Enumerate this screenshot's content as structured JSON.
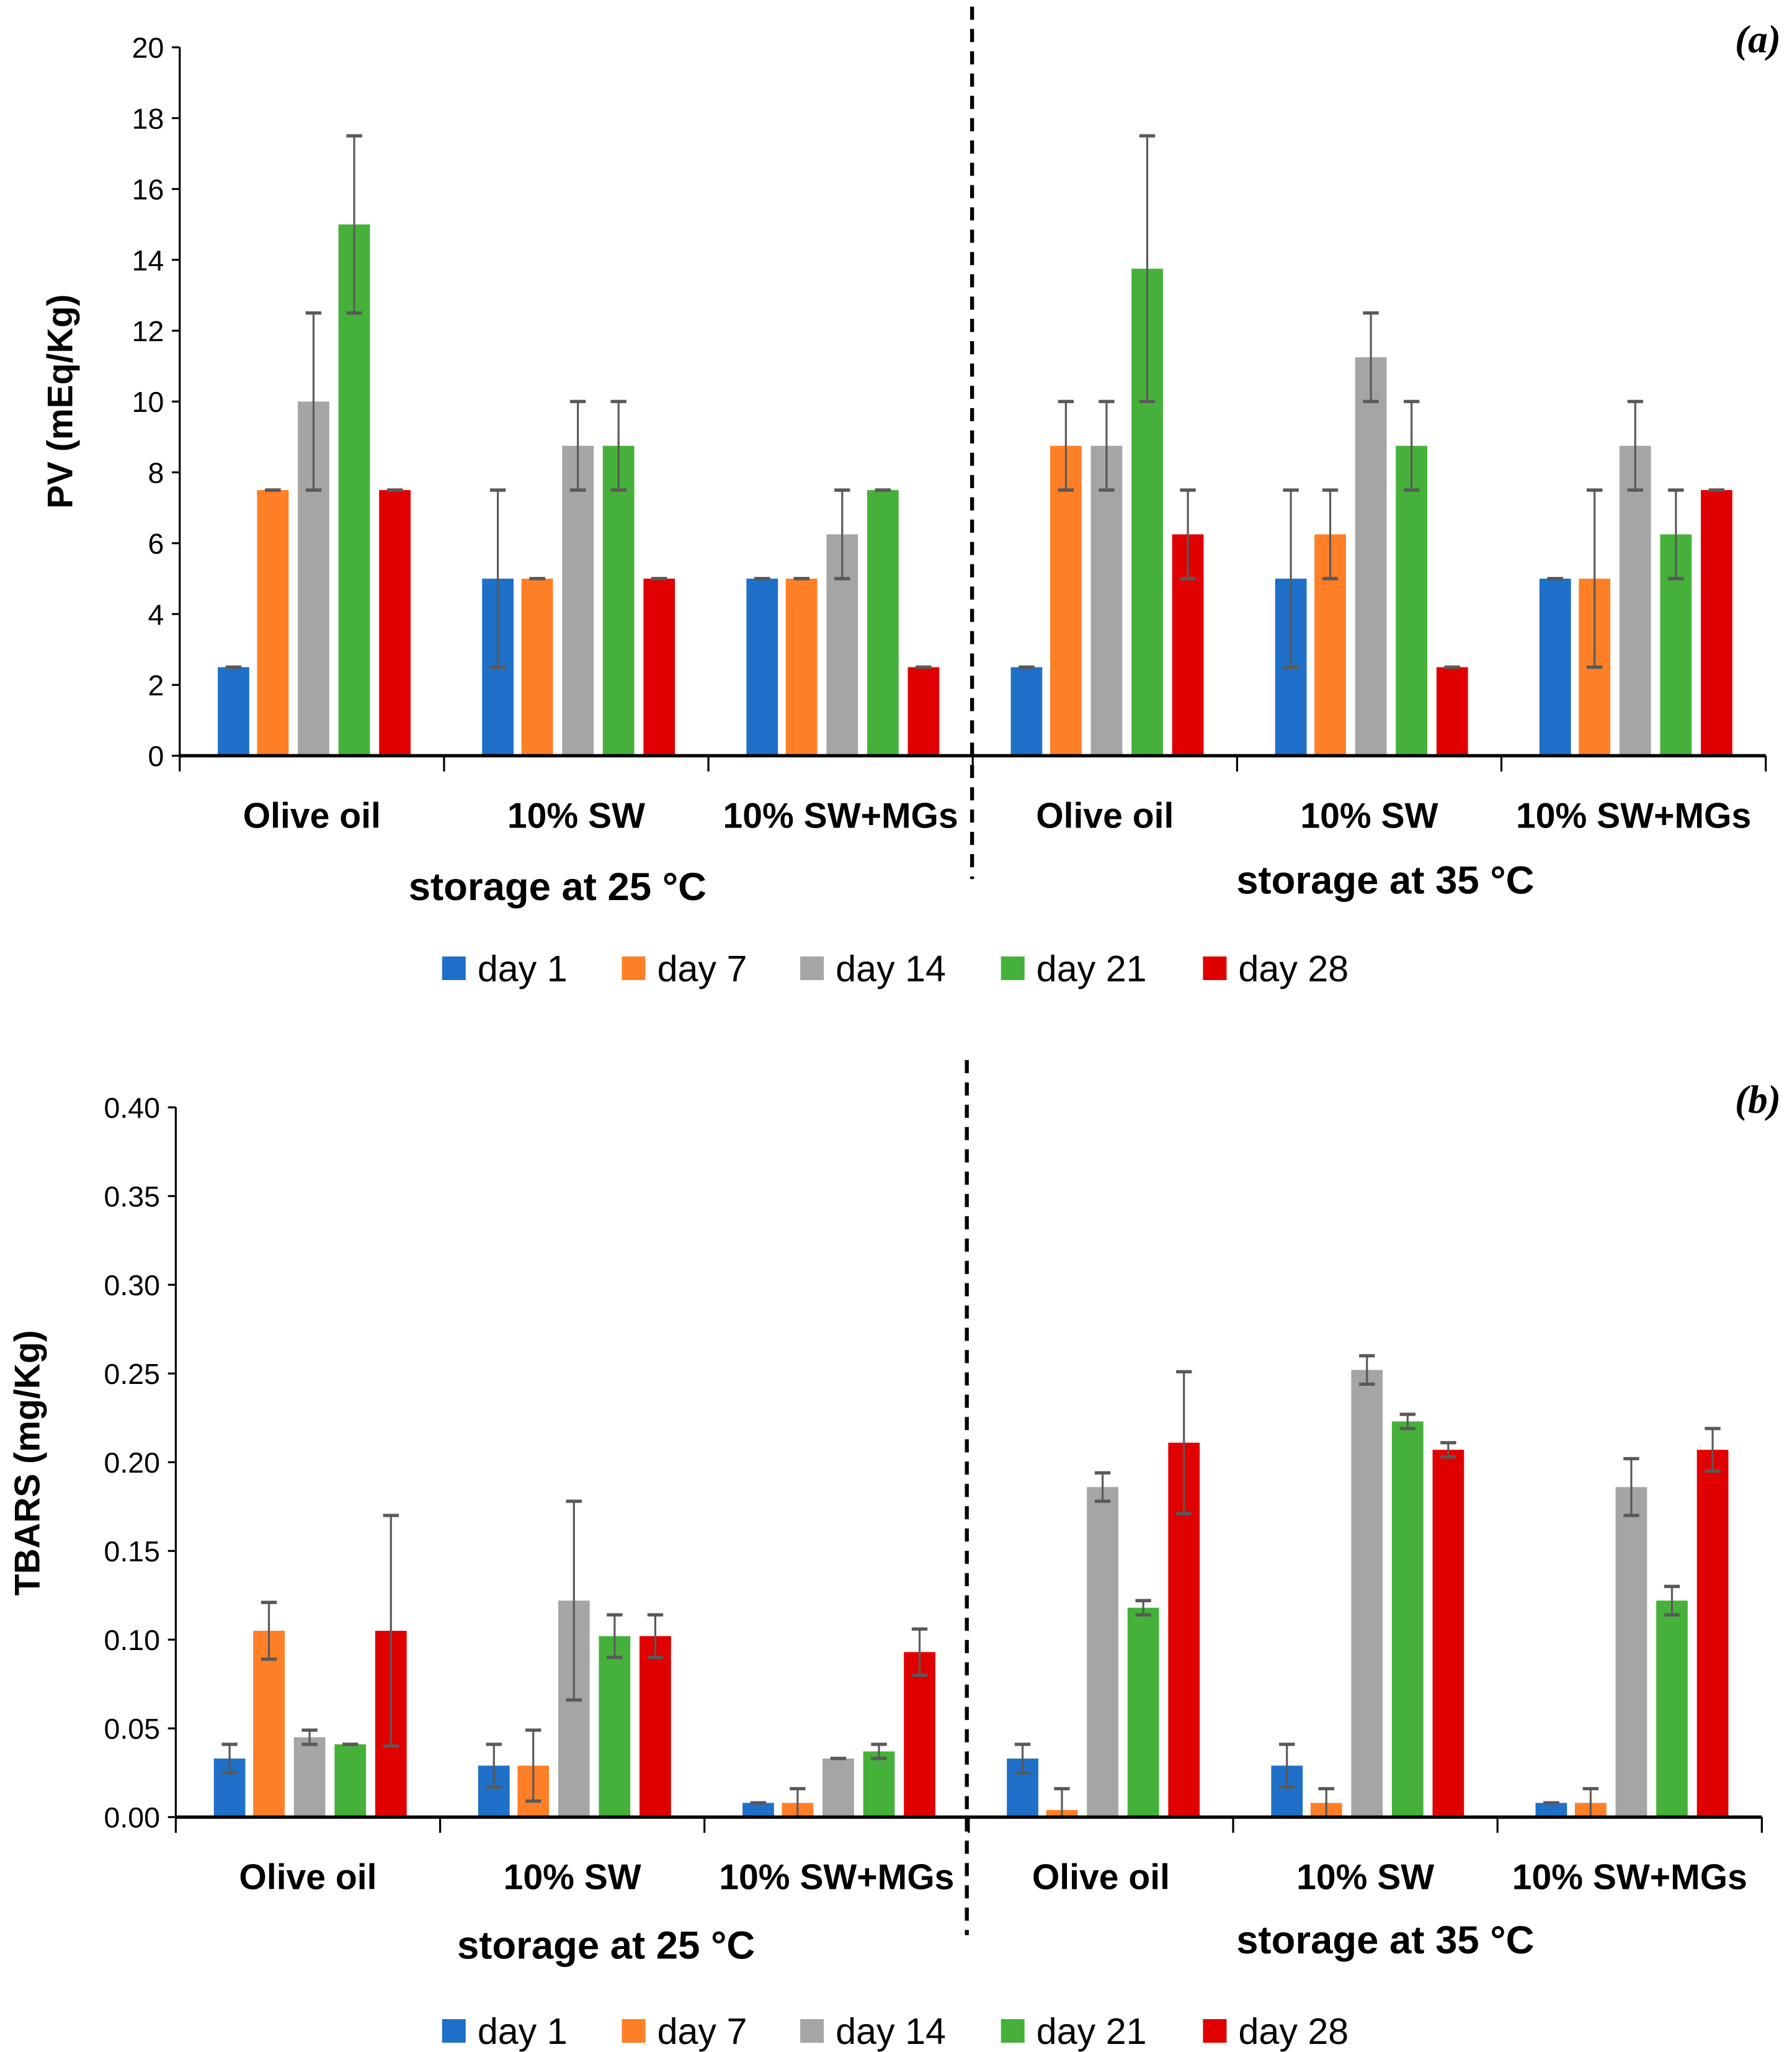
{
  "chart_data": [
    {
      "type": "bar",
      "panel_label": "(a)",
      "ylabel": "PV (mEq/Kg)",
      "ylim": [
        0,
        20
      ],
      "yticks": [
        "0",
        "2",
        "4",
        "6",
        "8",
        "10",
        "12",
        "14",
        "16",
        "18",
        "20"
      ],
      "categories": [
        "Olive oil",
        "10% SW",
        "10% SW+MGs",
        "Olive oil",
        "10% SW",
        "10% SW+MGs"
      ],
      "group_labels": [
        "storage at 25 °C",
        "storage at 35 °C"
      ],
      "legend_position": "bottom",
      "series": [
        {
          "name": "day 1",
          "color": "#1f70c8",
          "values": [
            2.5,
            5,
            5,
            2.5,
            5,
            5
          ],
          "errors": [
            0,
            2.5,
            0,
            0,
            2.5,
            0
          ]
        },
        {
          "name": "day 7",
          "color": "#ff7f27",
          "values": [
            7.5,
            5,
            5,
            8.75,
            6.25,
            5
          ],
          "errors": [
            0,
            0,
            0,
            1.25,
            1.25,
            2.5
          ]
        },
        {
          "name": "day 14",
          "color": "#a5a5a5",
          "values": [
            10,
            8.75,
            6.25,
            8.75,
            11.25,
            8.75
          ],
          "errors": [
            2.5,
            1.25,
            1.25,
            1.25,
            1.25,
            1.25
          ]
        },
        {
          "name": "day 21",
          "color": "#46b13a",
          "values": [
            15,
            8.75,
            7.5,
            13.75,
            8.75,
            6.25
          ],
          "errors": [
            2.5,
            1.25,
            0,
            3.75,
            1.25,
            1.25
          ]
        },
        {
          "name": "day 28",
          "color": "#e00000",
          "values": [
            7.5,
            5,
            2.5,
            6.25,
            2.5,
            7.5
          ],
          "errors": [
            0,
            0,
            0,
            1.25,
            0,
            0
          ]
        }
      ]
    },
    {
      "type": "bar",
      "panel_label": "(b)",
      "ylabel": "TBARS (mg/Kg)",
      "ylim": [
        0,
        0.4
      ],
      "yticks": [
        "0.00",
        "0.05",
        "0.10",
        "0.15",
        "0.20",
        "0.25",
        "0.30",
        "0.35",
        "0.40"
      ],
      "categories": [
        "Olive oil",
        "10% SW",
        "10% SW+MGs",
        "Olive oil",
        "10% SW",
        "10% SW+MGs"
      ],
      "group_labels": [
        "storage at 25 °C",
        "storage at 35 °C"
      ],
      "legend_position": "bottom",
      "series": [
        {
          "name": "day 1",
          "color": "#1f70c8",
          "values": [
            0.033,
            0.029,
            0.008,
            0.033,
            0.029,
            0.008
          ],
          "errors": [
            0.008,
            0.012,
            0,
            0.008,
            0.012,
            0
          ]
        },
        {
          "name": "day 7",
          "color": "#ff7f27",
          "values": [
            0.105,
            0.029,
            0.008,
            0.004,
            0.008,
            0.008
          ],
          "errors": [
            0.016,
            0.02,
            0.008,
            0.012,
            0.008,
            0.008
          ]
        },
        {
          "name": "day 14",
          "color": "#a5a5a5",
          "values": [
            0.045,
            0.122,
            0.033,
            0.186,
            0.252,
            0.186
          ],
          "errors": [
            0.004,
            0.056,
            0,
            0.008,
            0.008,
            0.016
          ]
        },
        {
          "name": "day 21",
          "color": "#46b13a",
          "values": [
            0.041,
            0.102,
            0.037,
            0.118,
            0.223,
            0.122
          ],
          "errors": [
            0,
            0.012,
            0.004,
            0.004,
            0.004,
            0.008
          ]
        },
        {
          "name": "day 28",
          "color": "#e00000",
          "values": [
            0.105,
            0.102,
            0.093,
            0.211,
            0.207,
            0.207
          ],
          "errors": [
            0.065,
            0.012,
            0.013,
            0.04,
            0.004,
            0.012
          ]
        }
      ]
    }
  ]
}
